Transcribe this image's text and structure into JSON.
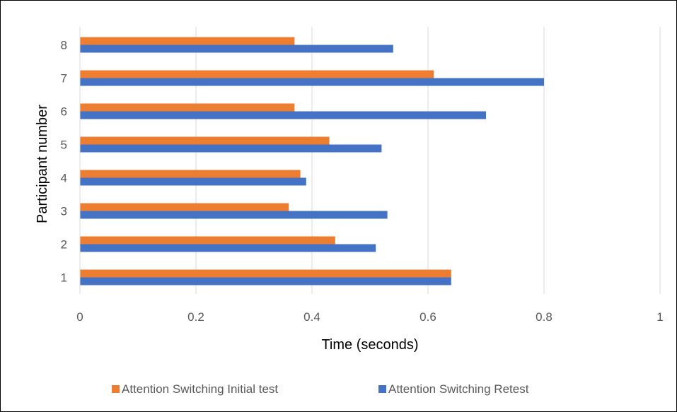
{
  "chart_data": {
    "type": "bar",
    "orientation": "horizontal",
    "categories": [
      "1",
      "2",
      "3",
      "4",
      "5",
      "6",
      "7",
      "8"
    ],
    "series": [
      {
        "name": "Attention Switching Initial test",
        "color": "#ED7D31",
        "values": [
          0.64,
          0.44,
          0.36,
          0.38,
          0.43,
          0.37,
          0.61,
          0.37
        ]
      },
      {
        "name": "Attention Switching Retest",
        "color": "#4472C4",
        "values": [
          0.64,
          0.51,
          0.53,
          0.39,
          0.52,
          0.7,
          0.8,
          0.54
        ]
      }
    ],
    "xlabel": "Time (seconds)",
    "ylabel": "Participant number",
    "xlim": [
      0,
      1
    ],
    "xticks": [
      "0",
      "0.2",
      "0.4",
      "0.6",
      "0.8",
      "1"
    ],
    "grid": true,
    "legend_position": "bottom"
  }
}
